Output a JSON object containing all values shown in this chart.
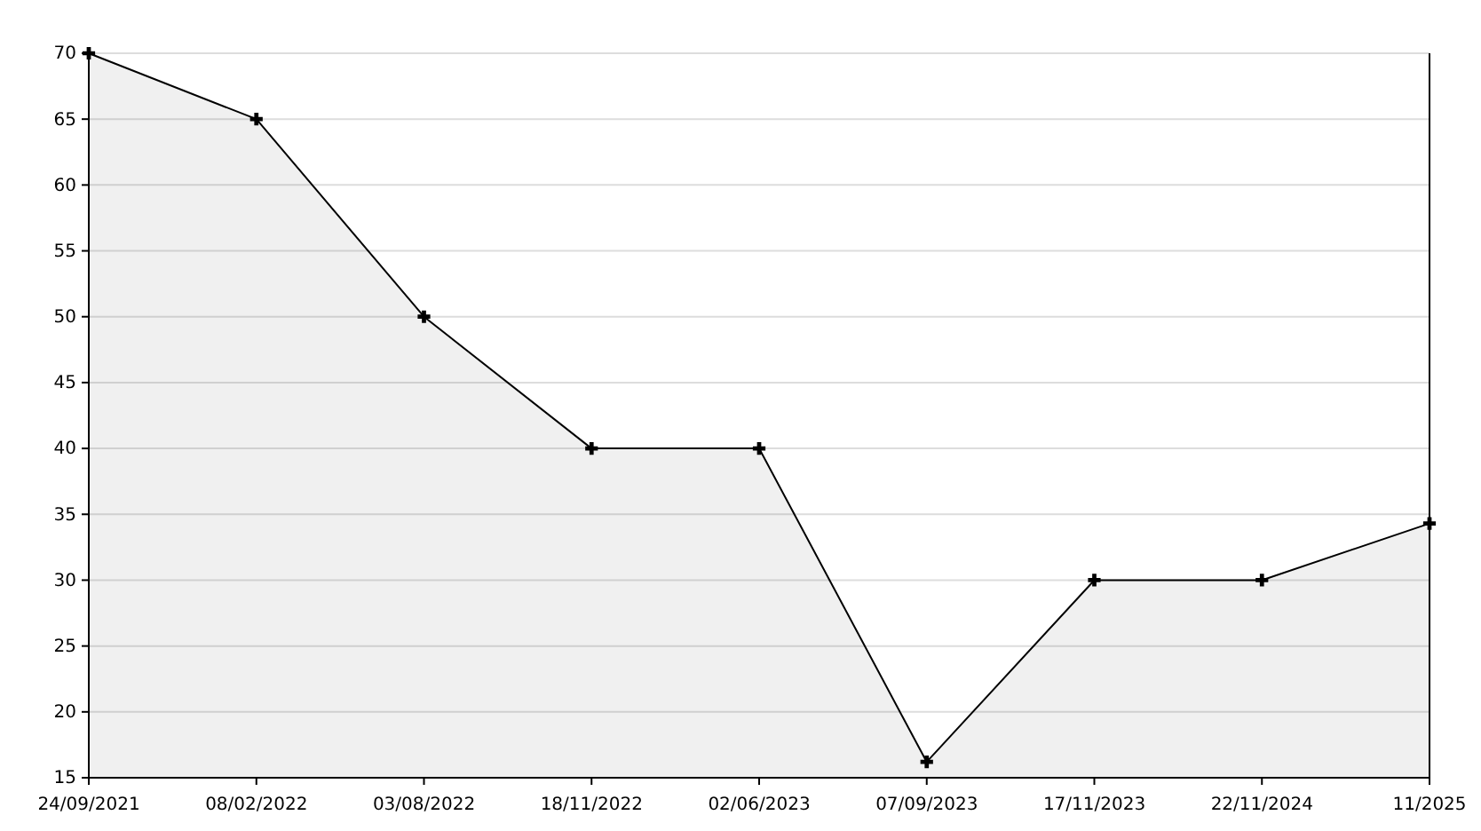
{
  "chart_data": {
    "type": "area",
    "categories": [
      "24/09/2021",
      "08/02/2022",
      "03/08/2022",
      "18/11/2022",
      "02/06/2023",
      "07/09/2023",
      "17/11/2023",
      "22/11/2024",
      "11/2025"
    ],
    "series": [
      {
        "color": "#000000",
        "values": [
          70,
          65,
          50,
          40,
          40,
          16.2,
          30,
          30,
          34.3
        ]
      }
    ],
    "ylim": [
      15,
      70
    ],
    "yticks": [
      15,
      20,
      25,
      30,
      35,
      40,
      45,
      50,
      55,
      60,
      65,
      70
    ],
    "grid": "y",
    "marker": "cross",
    "line_style": "solid"
  }
}
